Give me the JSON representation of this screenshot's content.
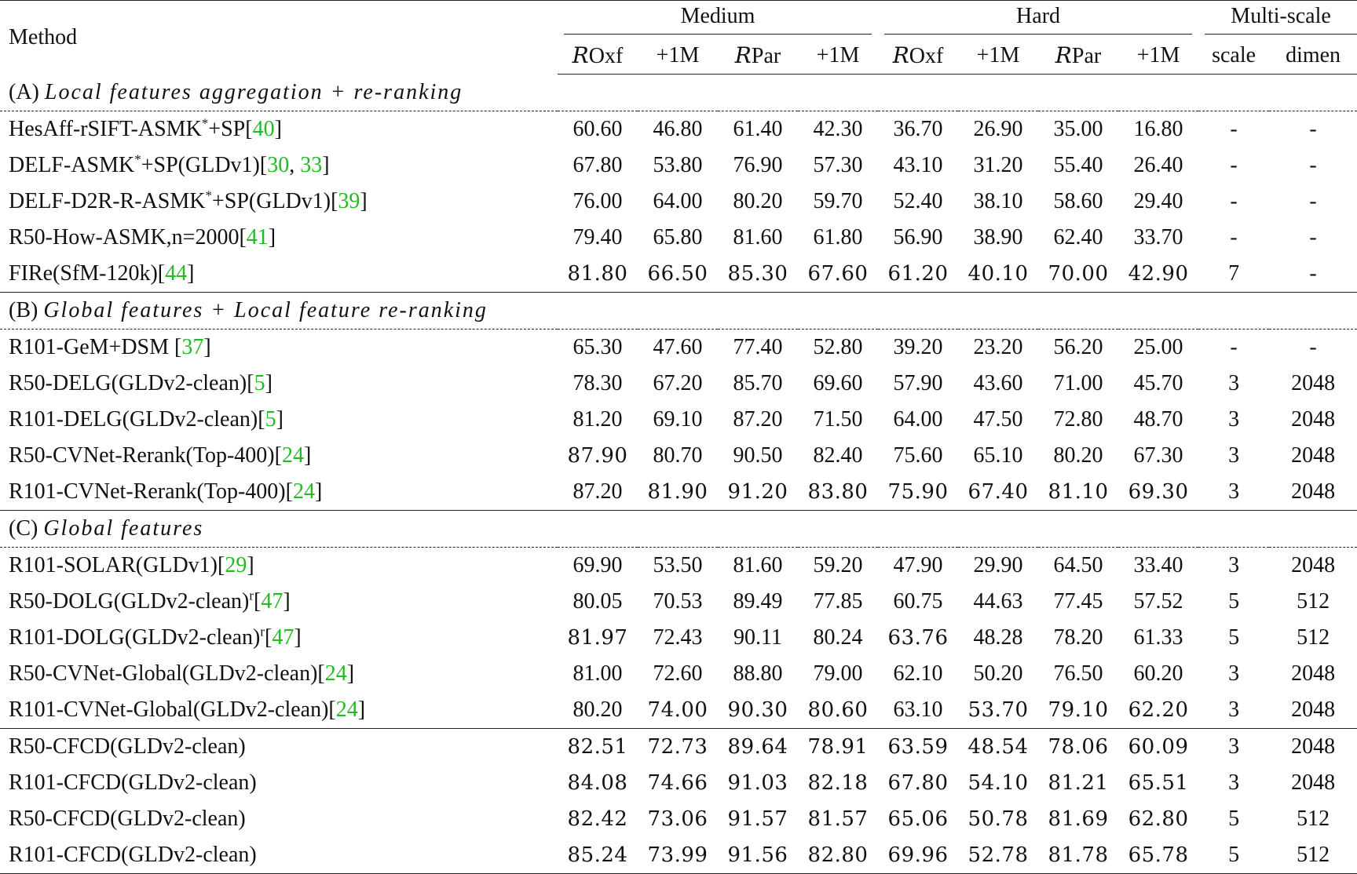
{
  "header": {
    "method": "Method",
    "medium": "Medium",
    "hard": "Hard",
    "multiscale": "Multi-scale",
    "sub": [
      "ROxf",
      "+1M",
      "RPar",
      "+1M",
      "ROxf",
      "+1M",
      "RPar",
      "+1M"
    ],
    "scale": "scale",
    "dimen": "dimen"
  },
  "sections": [
    {
      "label": "(A)",
      "title": "Local features aggregation + re-ranking",
      "rows": [
        {
          "method": "HesAff-rSIFT-ASMK",
          "sup": "*",
          "suffix": "+SP[",
          "cites": [
            "40"
          ],
          "close": "]",
          "vals": [
            "60.60",
            "46.80",
            "61.40",
            "42.30",
            "36.70",
            "26.90",
            "35.00",
            "16.80"
          ],
          "bold": [],
          "scale": "-",
          "dim": "-"
        },
        {
          "method": "DELF-ASMK",
          "sup": "*",
          "suffix": "+SP(GLDv1)[",
          "cites": [
            "30",
            "33"
          ],
          "close": "]",
          "vals": [
            "67.80",
            "53.80",
            "76.90",
            "57.30",
            "43.10",
            "31.20",
            "55.40",
            "26.40"
          ],
          "bold": [],
          "scale": "-",
          "dim": "-"
        },
        {
          "method": "DELF-D2R-R-ASMK",
          "sup": "*",
          "suffix": "+SP(GLDv1)[",
          "cites": [
            "39"
          ],
          "close": "]",
          "vals": [
            "76.00",
            "64.00",
            "80.20",
            "59.70",
            "52.40",
            "38.10",
            "58.60",
            "29.40"
          ],
          "bold": [],
          "scale": "-",
          "dim": "-"
        },
        {
          "method": "R50-How-ASMK,n=2000[",
          "sup": "",
          "suffix": "",
          "cites": [
            "41"
          ],
          "close": "]",
          "vals": [
            "79.40",
            "65.80",
            "81.60",
            "61.80",
            "56.90",
            "38.90",
            "62.40",
            "33.70"
          ],
          "bold": [],
          "scale": "-",
          "dim": "-"
        },
        {
          "method": "FIRe(SfM-120k)[",
          "sup": "",
          "suffix": "",
          "cites": [
            "44"
          ],
          "close": "]",
          "vals": [
            "81.80",
            "66.50",
            "85.30",
            "67.60",
            "61.20",
            "40.10",
            "70.00",
            "42.90"
          ],
          "bold": [
            0,
            1,
            2,
            3,
            4,
            5,
            6,
            7
          ],
          "scale": "7",
          "dim": "-"
        }
      ]
    },
    {
      "label": "(B)",
      "title": "Global features + Local feature re-ranking",
      "rows": [
        {
          "method": "R101-GeM+DSM [",
          "sup": "",
          "suffix": "",
          "cites": [
            "37"
          ],
          "close": "]",
          "vals": [
            "65.30",
            "47.60",
            "77.40",
            "52.80",
            "39.20",
            "23.20",
            "56.20",
            "25.00"
          ],
          "bold": [],
          "scale": "-",
          "dim": "-"
        },
        {
          "method": "R50-DELG(GLDv2-clean)[",
          "sup": "",
          "suffix": "",
          "cites": [
            "5"
          ],
          "close": "]",
          "vals": [
            "78.30",
            "67.20",
            "85.70",
            "69.60",
            "57.90",
            "43.60",
            "71.00",
            "45.70"
          ],
          "bold": [],
          "scale": "3",
          "dim": "2048"
        },
        {
          "method": "R101-DELG(GLDv2-clean)[",
          "sup": "",
          "suffix": "",
          "cites": [
            "5"
          ],
          "close": "]",
          "vals": [
            "81.20",
            "69.10",
            "87.20",
            "71.50",
            "64.00",
            "47.50",
            "72.80",
            "48.70"
          ],
          "bold": [],
          "scale": "3",
          "dim": "2048"
        },
        {
          "method": "R50-CVNet-Rerank(Top-400)[",
          "sup": "",
          "suffix": "",
          "cites": [
            "24"
          ],
          "close": "]",
          "vals": [
            "87.90",
            "80.70",
            "90.50",
            "82.40",
            "75.60",
            "65.10",
            "80.20",
            "67.30"
          ],
          "bold": [
            0
          ],
          "scale": "3",
          "dim": "2048"
        },
        {
          "method": "R101-CVNet-Rerank(Top-400)[",
          "sup": "",
          "suffix": "",
          "cites": [
            "24"
          ],
          "close": "]",
          "vals": [
            "87.20",
            "81.90",
            "91.20",
            "83.80",
            "75.90",
            "67.40",
            "81.10",
            "69.30"
          ],
          "bold": [
            1,
            2,
            3,
            4,
            5,
            6,
            7
          ],
          "scale": "3",
          "dim": "2048"
        }
      ]
    },
    {
      "label": "(C)",
      "title": "Global features",
      "rows": [
        {
          "method": "R101-SOLAR(GLDv1)[",
          "sup": "",
          "suffix": "",
          "cites": [
            "29"
          ],
          "close": "]",
          "vals": [
            "69.90",
            "53.50",
            "81.60",
            "59.20",
            "47.90",
            "29.90",
            "64.50",
            "33.40"
          ],
          "bold": [],
          "scale": "3",
          "dim": "2048"
        },
        {
          "method": "R50-DOLG(GLDv2-clean)",
          "sup": "r",
          "suffix": "[",
          "cites": [
            "47"
          ],
          "close": "]",
          "vals": [
            "80.05",
            "70.53",
            "89.49",
            "77.85",
            "60.75",
            "44.63",
            "77.45",
            "57.52"
          ],
          "bold": [],
          "scale": "5",
          "dim": "512"
        },
        {
          "method": "R101-DOLG(GLDv2-clean)",
          "sup": "r",
          "suffix": "[",
          "cites": [
            "47"
          ],
          "close": "]",
          "vals": [
            "81.97",
            "72.43",
            "90.11",
            "80.24",
            "63.76",
            "48.28",
            "78.20",
            "61.33"
          ],
          "bold": [
            0,
            4
          ],
          "scale": "5",
          "dim": "512"
        },
        {
          "method": "R50-CVNet-Global(GLDv2-clean)[",
          "sup": "",
          "suffix": "",
          "cites": [
            "24"
          ],
          "close": "]",
          "vals": [
            "81.00",
            "72.60",
            "88.80",
            "79.00",
            "62.10",
            "50.20",
            "76.50",
            "60.20"
          ],
          "bold": [],
          "scale": "3",
          "dim": "2048"
        },
        {
          "method": "R101-CVNet-Global(GLDv2-clean)[",
          "sup": "",
          "suffix": "",
          "cites": [
            "24"
          ],
          "close": "]",
          "vals": [
            "80.20",
            "74.00",
            "90.30",
            "80.60",
            "63.10",
            "53.70",
            "79.10",
            "62.20"
          ],
          "bold": [
            1,
            2,
            3,
            5,
            6,
            7
          ],
          "scale": "3",
          "dim": "2048"
        }
      ]
    }
  ],
  "ours": [
    {
      "method": "R50-CFCD(GLDv2-clean)",
      "vals": [
        "82.51",
        "72.73",
        "89.64",
        "78.91",
        "63.59",
        "48.54",
        "78.06",
        "60.09"
      ],
      "scale": "3",
      "dim": "2048"
    },
    {
      "method": "R101-CFCD(GLDv2-clean)",
      "vals": [
        "84.08",
        "74.66",
        "91.03",
        "82.18",
        "67.80",
        "54.10",
        "81.21",
        "65.51"
      ],
      "scale": "3",
      "dim": "2048"
    },
    {
      "method": "R50-CFCD(GLDv2-clean)",
      "vals": [
        "82.42",
        "73.06",
        "91.57",
        "81.57",
        "65.06",
        "50.78",
        "81.69",
        "62.80"
      ],
      "scale": "5",
      "dim": "512"
    },
    {
      "method": "R101-CFCD(GLDv2-clean)",
      "vals": [
        "85.24",
        "73.99",
        "91.56",
        "82.80",
        "69.96",
        "52.78",
        "81.78",
        "65.78"
      ],
      "scale": "5",
      "dim": "512"
    }
  ]
}
